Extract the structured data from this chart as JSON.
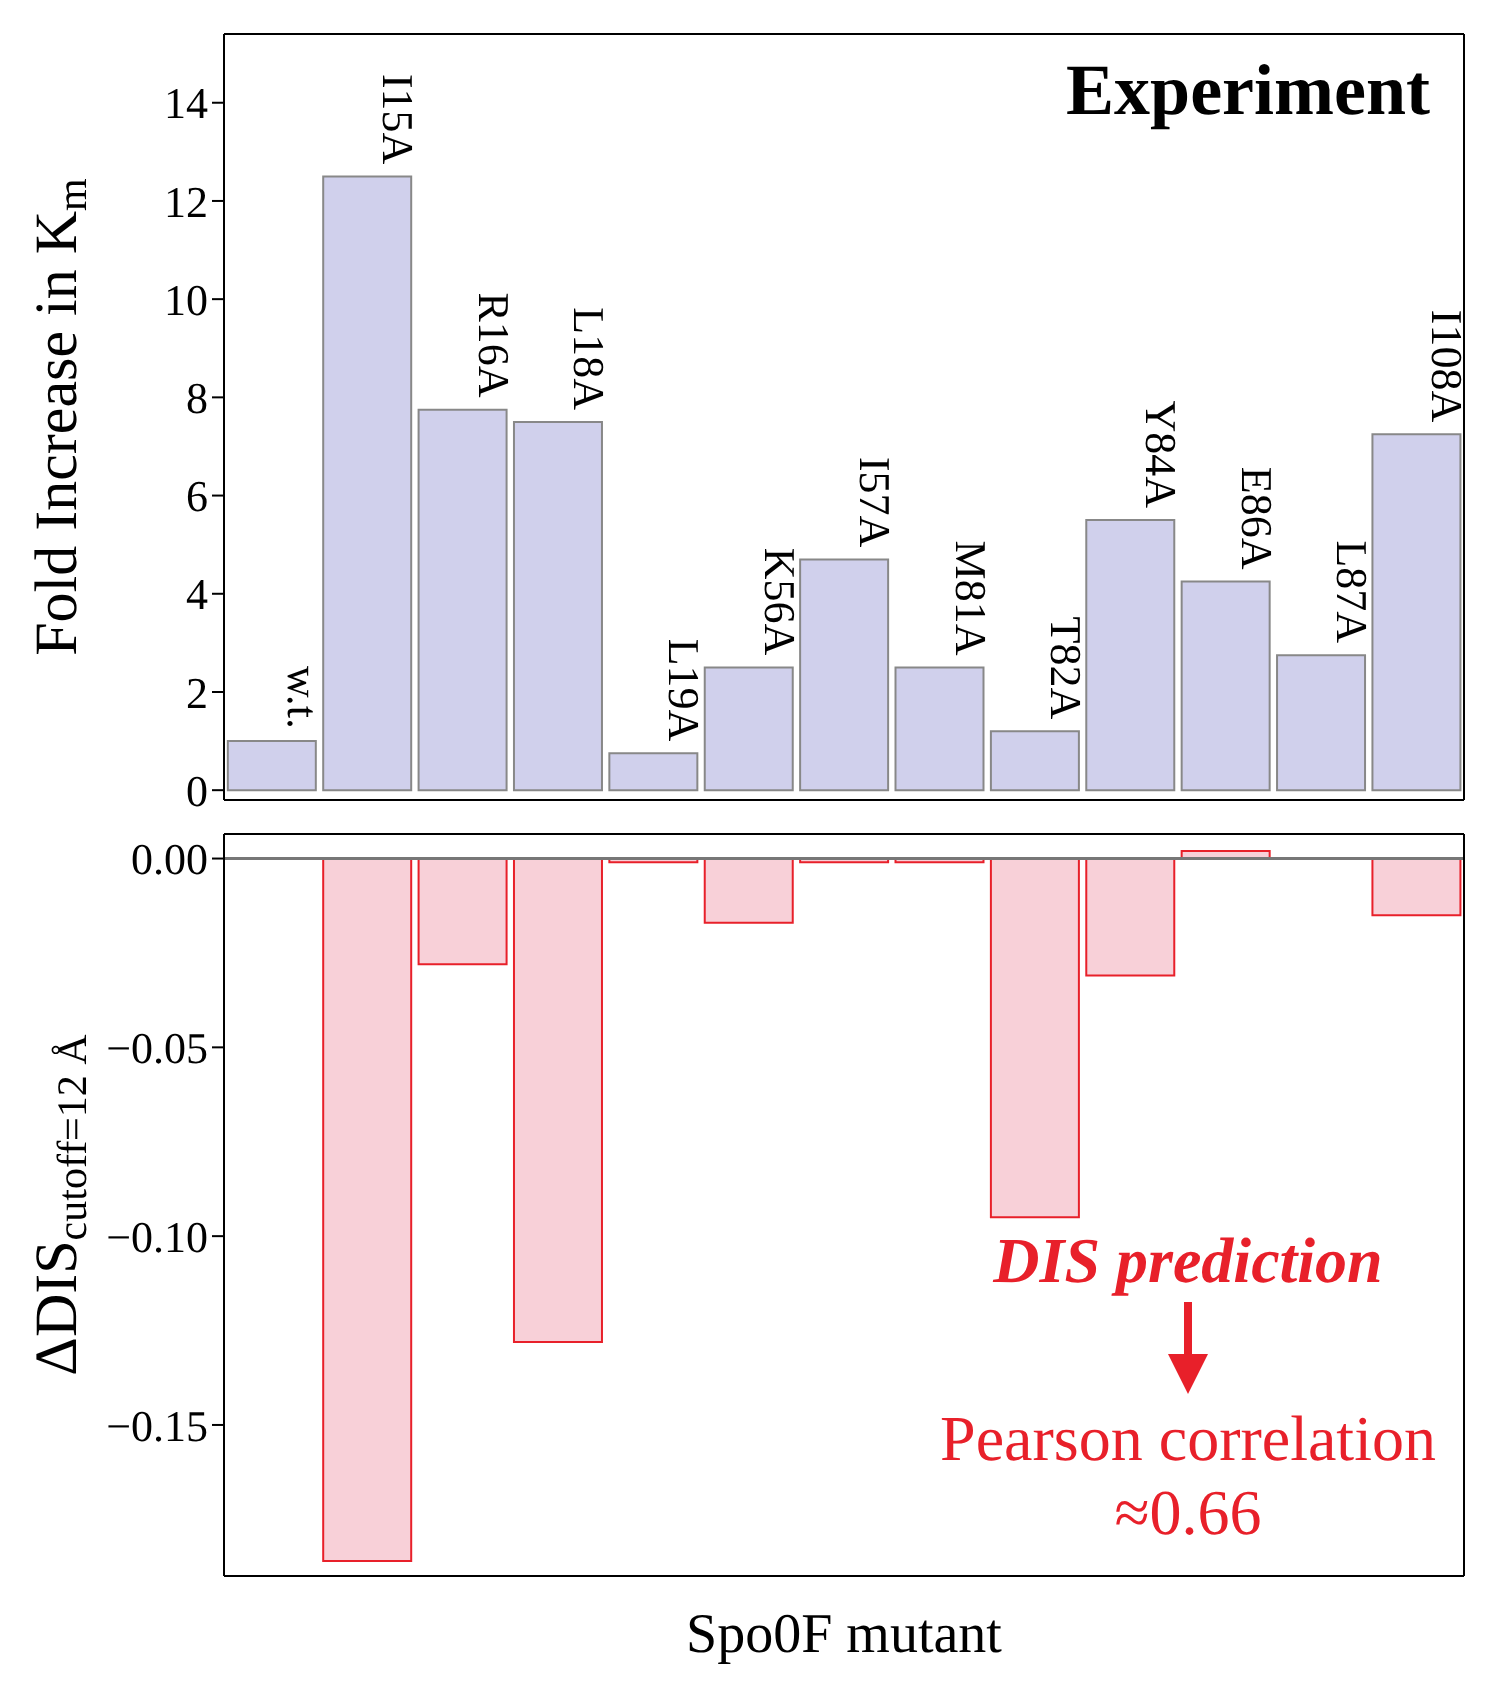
{
  "chart_data": [
    {
      "type": "bar",
      "ylabel": "Fold Increase in K$_{m}$",
      "categories": [
        "w.t.",
        "I15A",
        "R16A",
        "L18A",
        "L19A",
        "K56A",
        "I57A",
        "M81A",
        "T82A",
        "Y84A",
        "E86A",
        "L87A",
        "I108A"
      ],
      "values": [
        1,
        12.5,
        7.75,
        7.5,
        0.75,
        2.5,
        4.7,
        2.5,
        1.2,
        5.5,
        4.25,
        2.75,
        7.25
      ],
      "color": "#d0d0ec",
      "ylim": [
        -0.2,
        15.4
      ],
      "yticks": [
        0,
        2,
        4,
        6,
        8,
        10,
        12,
        14
      ],
      "annotations": [
        "Experiment"
      ],
      "grid": false,
      "legend": false
    },
    {
      "type": "bar",
      "xlabel": "Spo0F mutant",
      "ylabel": "ΔDIS$_{cutoff=12 Å}$",
      "categories": [
        null,
        null,
        null,
        null,
        null,
        null,
        null,
        null,
        null,
        null,
        null,
        null,
        null
      ],
      "values": [
        0,
        -0.186,
        -0.028,
        -0.128,
        -0.001,
        -0.017,
        -0.001,
        -0.001,
        -0.095,
        -0.031,
        0.002,
        0,
        -0.015
      ],
      "color": "#f8d0d8",
      "ylim": [
        -0.19,
        0.0065
      ],
      "yticks": [
        {
          "value": 0,
          "label": "0.00"
        },
        {
          "value": -0.05,
          "label": "−0.05"
        },
        {
          "value": -0.1,
          "label": "−0.10"
        },
        {
          "value": -0.15,
          "label": "−0.15"
        }
      ],
      "tick_labels": "y",
      "ref_lines": [
        {
          "axis": "y",
          "value": 0,
          "color": "#777777"
        }
      ],
      "annotations": [
        "DIS prediction",
        "Pearson correlation  ≈0.66"
      ],
      "grid": false,
      "legend": false
    }
  ]
}
